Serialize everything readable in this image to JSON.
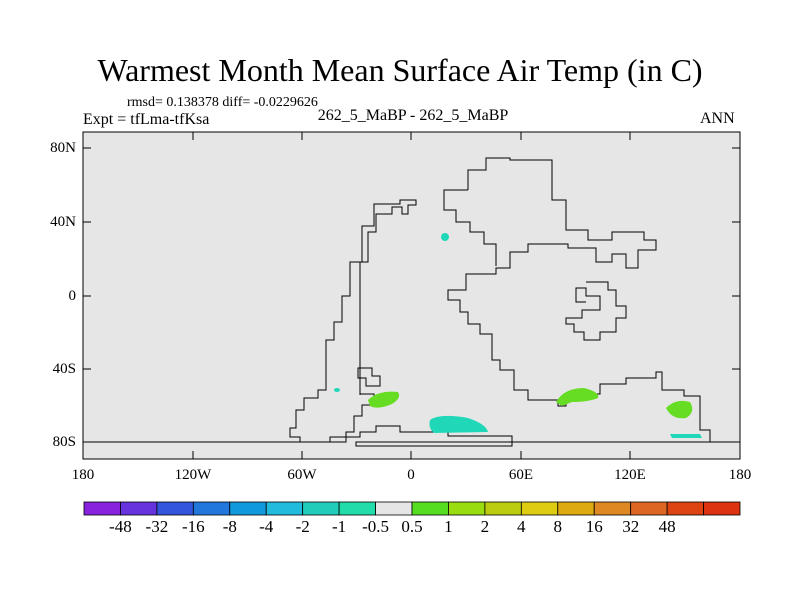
{
  "title": "Warmest Month Mean Surface Air Temp (in C)",
  "stats": "rmsd= 0.138378  diff= -0.0229626",
  "experiment": "Expt = tfLma-tfKsa",
  "center_label": "262_5_MaBP - 262_5_MaBP",
  "season": "ANN",
  "colors": {
    "ocean_land_fill": "#e6e6e6",
    "coastline": "#000000",
    "cyan_patch": "#20d8b8",
    "green_patch": "#66dd22"
  },
  "map": {
    "y_axis_labels": [
      "80N",
      "40N",
      "0",
      "40S",
      "80S"
    ],
    "x_axis_labels": [
      "180",
      "120W",
      "60W",
      "0",
      "60E",
      "120E",
      "180"
    ]
  },
  "colorbar": {
    "colors": [
      "#8822dd",
      "#6633dd",
      "#3355dd",
      "#2277dd",
      "#1199dd",
      "#22bbdd",
      "#22ccbb",
      "#22ddaa",
      "#e6e6e6",
      "#55dd22",
      "#99dd11",
      "#bbcc11",
      "#ddcc11",
      "#ddaa11",
      "#dd8822",
      "#dd6622",
      "#dd4411",
      "#dd3311"
    ],
    "labels": [
      "-48",
      "-32",
      "-16",
      "-8",
      "-4",
      "-2",
      "-1",
      "-0.5",
      "0.5",
      "1",
      "2",
      "4",
      "8",
      "16",
      "32",
      "48"
    ]
  }
}
